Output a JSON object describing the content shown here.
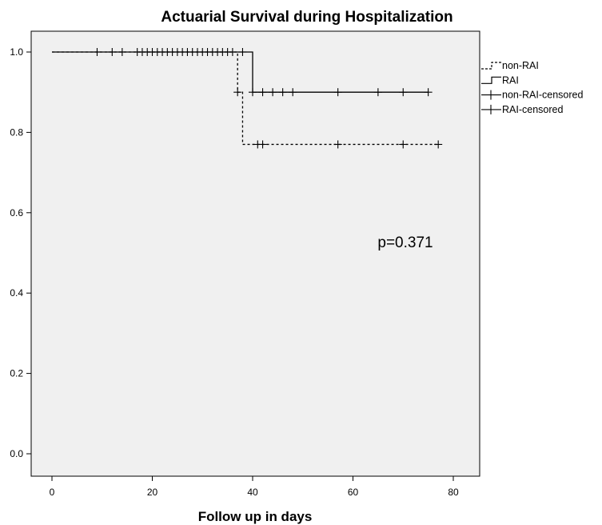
{
  "chart_data": {
    "type": "line",
    "title": "Actuarial Survival during Hospitalization",
    "xlabel": "Follow up in days",
    "ylabel": "",
    "xlim": [
      -4,
      85
    ],
    "ylim": [
      -0.06,
      1.05
    ],
    "x_ticks": [
      0,
      20,
      40,
      60,
      80
    ],
    "y_ticks": [
      0.0,
      0.2,
      0.4,
      0.6,
      0.8,
      1.0
    ],
    "x_tick_labels": [
      "0",
      "20",
      "40",
      "60",
      "80"
    ],
    "y_tick_labels": [
      "0.0",
      "0.2",
      "0.4",
      "0.6",
      "0.8",
      "1.0"
    ],
    "grid": false,
    "legend_position": "outside-right",
    "annotation": "p=0.371",
    "series": [
      {
        "name": "non-RAI",
        "style": "dashed",
        "color": "#000000",
        "steps": [
          [
            0,
            1.0
          ],
          [
            37,
            0.9
          ],
          [
            38,
            0.77
          ],
          [
            77,
            0.77
          ]
        ],
        "censored": [
          [
            37,
            0.9
          ],
          [
            41,
            0.77
          ],
          [
            42,
            0.77
          ],
          [
            57,
            0.77
          ],
          [
            70,
            0.77
          ],
          [
            77,
            0.77
          ]
        ]
      },
      {
        "name": "RAI",
        "style": "solid",
        "color": "#000000",
        "steps": [
          [
            0,
            1.0
          ],
          [
            40,
            0.9
          ],
          [
            75,
            0.9
          ]
        ],
        "censored": [
          [
            9,
            1.0
          ],
          [
            12,
            1.0
          ],
          [
            14,
            1.0
          ],
          [
            17,
            1.0
          ],
          [
            18,
            1.0
          ],
          [
            19,
            1.0
          ],
          [
            20,
            1.0
          ],
          [
            21,
            1.0
          ],
          [
            22,
            1.0
          ],
          [
            23,
            1.0
          ],
          [
            24,
            1.0
          ],
          [
            25,
            1.0
          ],
          [
            26,
            1.0
          ],
          [
            27,
            1.0
          ],
          [
            28,
            1.0
          ],
          [
            29,
            1.0
          ],
          [
            30,
            1.0
          ],
          [
            31,
            1.0
          ],
          [
            32,
            1.0
          ],
          [
            33,
            1.0
          ],
          [
            34,
            1.0
          ],
          [
            35,
            1.0
          ],
          [
            36,
            1.0
          ],
          [
            38,
            1.0
          ],
          [
            40,
            0.9
          ],
          [
            42,
            0.9
          ],
          [
            44,
            0.9
          ],
          [
            46,
            0.9
          ],
          [
            48,
            0.9
          ],
          [
            57,
            0.9
          ],
          [
            65,
            0.9
          ],
          [
            70,
            0.9
          ],
          [
            75,
            0.9
          ]
        ]
      }
    ],
    "legend": [
      {
        "label": "non-RAI",
        "symbol": "dashed-step"
      },
      {
        "label": "RAI",
        "symbol": "solid-step"
      },
      {
        "label": "non-RAI-censored",
        "symbol": "cross"
      },
      {
        "label": "RAI-censored",
        "symbol": "cross"
      }
    ]
  },
  "colors": {
    "plot_background": "#f0f0f0",
    "frame": "#000000",
    "line": "#000000"
  }
}
